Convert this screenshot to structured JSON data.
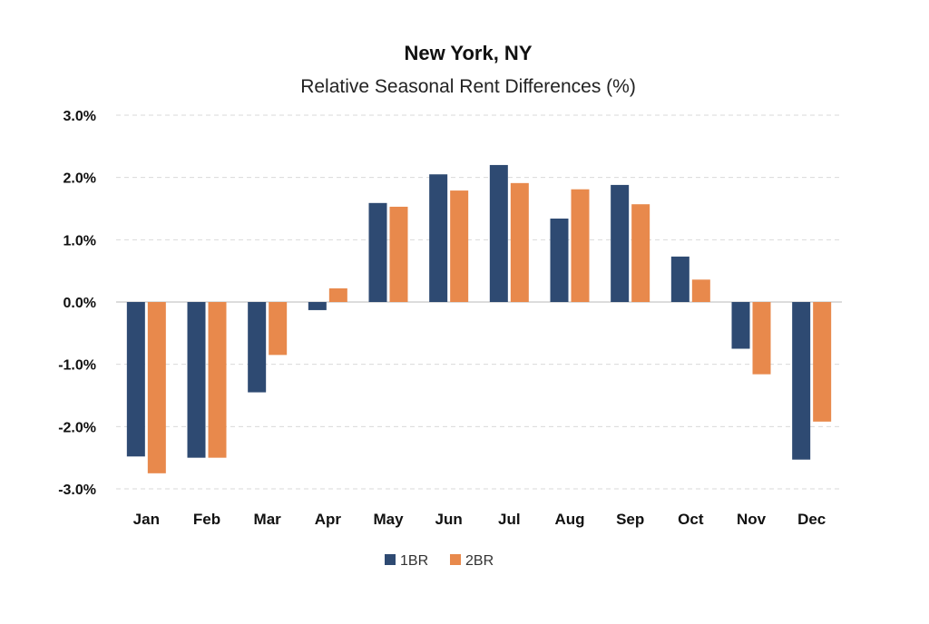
{
  "chart_data": {
    "type": "bar",
    "title": "New York, NY",
    "subtitle": "Relative Seasonal Rent Differences (%)",
    "xlabel": "",
    "ylabel": "",
    "categories": [
      "Jan",
      "Feb",
      "Mar",
      "Apr",
      "May",
      "Jun",
      "Jul",
      "Aug",
      "Sep",
      "Oct",
      "Nov",
      "Dec"
    ],
    "series": [
      {
        "name": "1BR",
        "color": "#2e4a72",
        "values": [
          -2.48,
          -2.5,
          -1.45,
          -0.13,
          1.59,
          2.05,
          2.2,
          1.34,
          1.88,
          0.73,
          -0.75,
          -2.53
        ]
      },
      {
        "name": "2BR",
        "color": "#e8894c",
        "values": [
          -2.75,
          -2.5,
          -0.85,
          0.22,
          1.53,
          1.79,
          1.91,
          1.81,
          1.57,
          0.36,
          -1.16,
          -1.92
        ]
      }
    ],
    "ylim": [
      -3.0,
      3.0
    ],
    "yticks": [
      3.0,
      2.0,
      1.0,
      0.0,
      -1.0,
      -2.0,
      -3.0
    ],
    "ytick_labels": [
      "3.0%",
      "2.0%",
      "1.0%",
      "0.0%",
      "-1.0%",
      "-2.0%",
      "-3.0%"
    ],
    "grid": "horizontal dashed",
    "legend": "bottom-center"
  }
}
